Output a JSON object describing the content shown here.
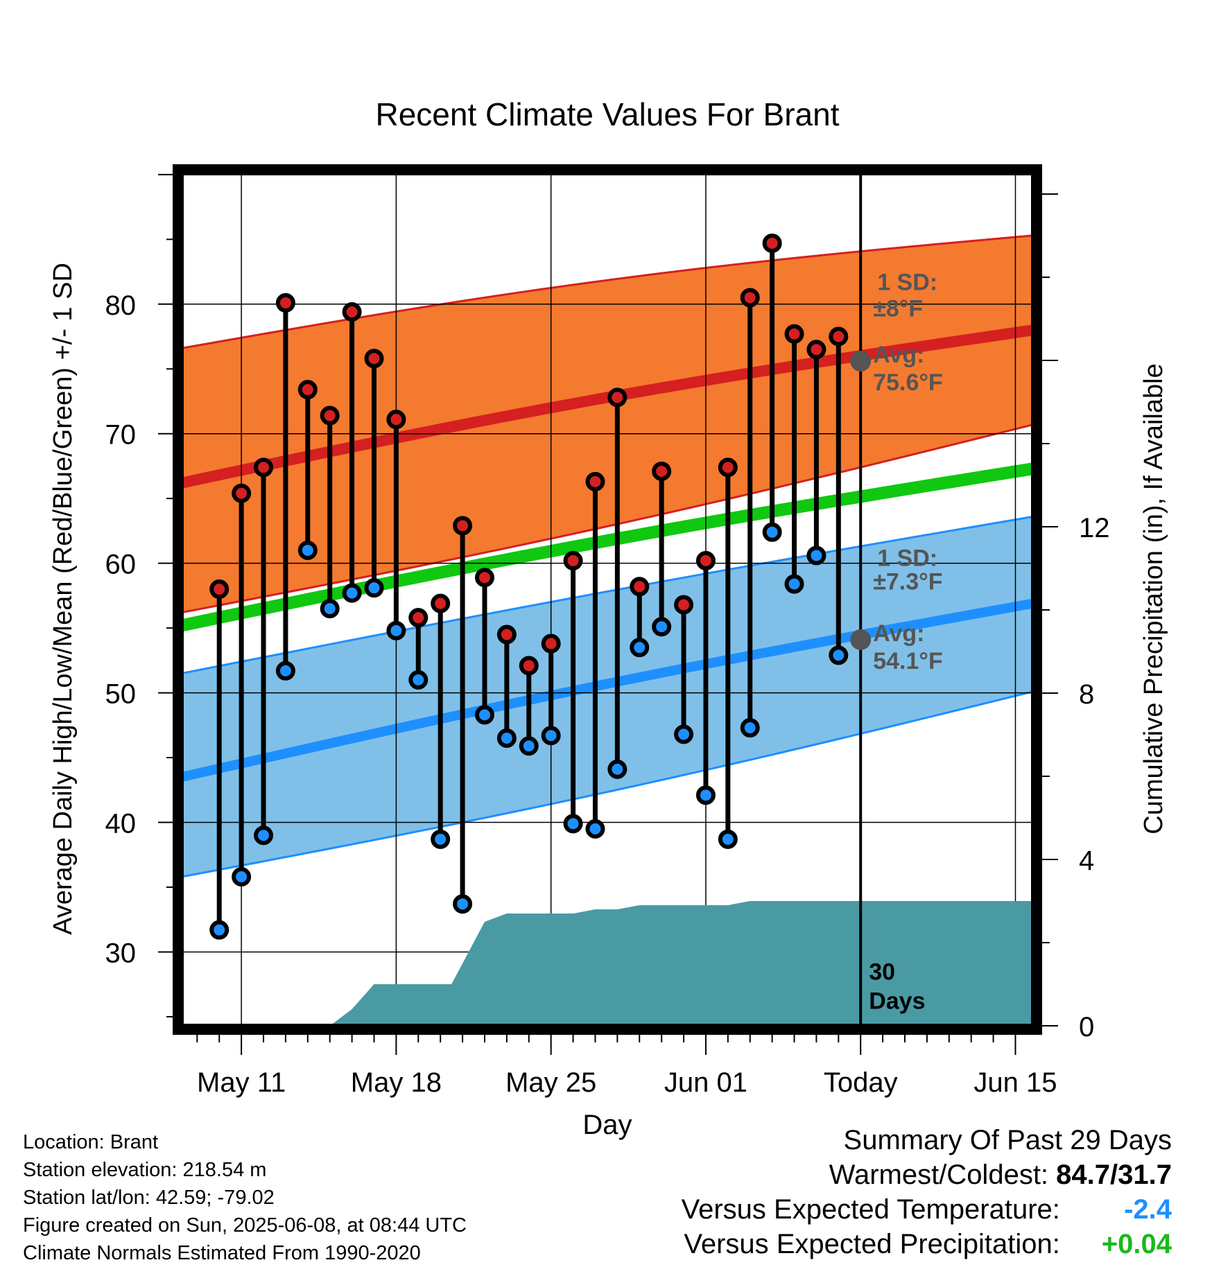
{
  "chart_data": {
    "type": "line",
    "title": "Recent Climate Values For Brant",
    "xlabel": "Day",
    "ylabel": "Average Daily High/Low/Mean (Red/Blue/Green) +/- 1 SD",
    "y2label": "Cumulative Precipitation (in), If Available",
    "xlim": [
      8.3,
      46.8
    ],
    "ylim": [
      24.3,
      90.1
    ],
    "y2lim": [
      0,
      20.5
    ],
    "x_ticks": [
      {
        "x": 11,
        "label": "May 11"
      },
      {
        "x": 18,
        "label": "May 18"
      },
      {
        "x": 25,
        "label": "May 25"
      },
      {
        "x": 32,
        "label": "Jun 01"
      },
      {
        "x": 39,
        "label": "Today"
      },
      {
        "x": 46,
        "label": "Jun 15"
      }
    ],
    "y_ticks": [
      30,
      40,
      50,
      60,
      70,
      80
    ],
    "y2_ticks": [
      0,
      4,
      8,
      12
    ],
    "grid": true,
    "days": [
      10,
      11,
      12,
      13,
      14,
      15,
      16,
      17,
      18,
      19,
      20,
      21,
      22,
      23,
      24,
      25,
      26,
      27,
      28,
      29,
      30,
      31,
      32,
      33,
      34,
      35,
      36,
      37,
      38
    ],
    "series": [
      {
        "name": "High",
        "color": "#d42020",
        "values": [
          58.0,
          65.4,
          67.4,
          80.1,
          73.4,
          71.4,
          79.4,
          75.8,
          71.1,
          55.8,
          56.9,
          62.9,
          58.9,
          54.5,
          52.1,
          53.8,
          60.2,
          66.3,
          72.8,
          58.2,
          67.1,
          56.8,
          60.2,
          67.4,
          80.5,
          84.7,
          77.7,
          76.5,
          77.5
        ]
      },
      {
        "name": "Low",
        "color": "#1e8fff",
        "values": [
          31.7,
          35.8,
          39.0,
          51.7,
          61.0,
          56.5,
          57.7,
          58.1,
          54.8,
          51.0,
          38.7,
          33.7,
          48.3,
          46.5,
          45.9,
          46.7,
          39.9,
          39.5,
          44.1,
          53.5,
          55.1,
          46.8,
          42.1,
          38.7,
          47.3,
          62.4,
          58.4,
          60.6,
          52.9
        ]
      }
    ],
    "normals": {
      "x": [
        8.3,
        46.8
      ],
      "avg_high": [
        66.2,
        78.0
      ],
      "high_upper": [
        76.6,
        85.3
      ],
      "high_lower": [
        56.2,
        70.7
      ],
      "avg_mean": [
        55.2,
        67.3
      ],
      "avg_low": [
        43.5,
        56.9
      ],
      "low_upper": [
        51.5,
        63.6
      ],
      "low_lower": [
        35.8,
        50.1
      ],
      "color_high_band": "#f47a2f",
      "color_low_band": "#80c0e8",
      "color_mean": "#10c810"
    },
    "precipitation": {
      "x": [
        8.3,
        12.7,
        13.2,
        14.2,
        15.0,
        16.0,
        17.0,
        18.0,
        19.0,
        20.0,
        20.5,
        21.5,
        22.0,
        23.0,
        24.0,
        25.0,
        26.0,
        27.0,
        28.0,
        29.0,
        30.0,
        31.0,
        32.0,
        33.0,
        34.0,
        35.0,
        36.0,
        37.0,
        38.0,
        39.0,
        46.8
      ],
      "values": [
        0,
        0,
        0,
        0,
        0,
        0.4,
        1.0,
        1.0,
        1.0,
        1.0,
        1.0,
        2.0,
        2.5,
        2.7,
        2.7,
        2.7,
        2.7,
        2.8,
        2.8,
        2.9,
        2.9,
        2.9,
        2.9,
        2.9,
        3.0,
        3.0,
        3.0,
        3.0,
        3.0,
        3.0,
        3.0
      ],
      "color": "#4a9aa4"
    },
    "annotations": [
      {
        "label_1": "1 SD:",
        "label_2": "±8°F",
        "x": 39,
        "y": 79.6
      },
      {
        "label_1": "Avg:",
        "label_2": "75.6°F",
        "x": 39,
        "y": 75.6
      },
      {
        "label_1": "1 SD:",
        "label_2": "±7.3°F",
        "x": 39,
        "y": 58.5
      },
      {
        "label_1": "Avg:",
        "label_2": "54.1°F",
        "x": 39,
        "y": 54.1
      },
      {
        "label_1": "30",
        "label_2": "Days",
        "x": 39,
        "y": 26.8
      }
    ]
  },
  "info": {
    "location": "Location: Brant",
    "elevation": "Station elevation: 218.54 m",
    "latlon": "Station lat/lon: 42.59; -79.02",
    "created": "Figure created on Sun, 2025-06-08, at 08:44 UTC",
    "normals": "Climate Normals Estimated From 1990-2020"
  },
  "summary": {
    "title": "Summary Of Past 29 Days",
    "warm_cold_label": "Warmest/Coldest:",
    "warm_cold_value": "84.7/31.7",
    "temp_label": "Versus Expected Temperature:",
    "temp_value": "-2.4",
    "temp_color": "#1e8fff",
    "precip_label": "Versus Expected Precipitation:",
    "precip_value": "+0.04",
    "precip_color": "#1cb81c"
  }
}
